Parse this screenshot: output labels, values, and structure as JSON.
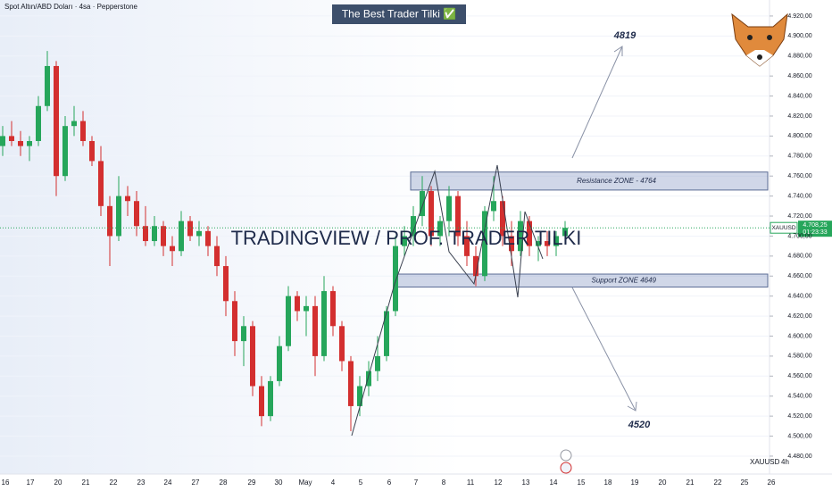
{
  "chart_data": {
    "type": "candlestick",
    "title": "Spot Altın/ABD Doları · 4sa · Pepperstone",
    "banner": "The Best Trader Tilki ✅",
    "watermark": "TRADINGVIEW / PROF.  TRADER TILKI",
    "symbol": "XAUUSD",
    "timeframe": "4h",
    "price_tag": {
      "symbol": "XAUUSD",
      "price": "4.708,25",
      "countdown": "01:23:33"
    },
    "up_color": "#26a65b",
    "down_color": "#d32f2f",
    "ylim": [
      4463,
      4936
    ],
    "yticks": [
      {
        "value": 4920,
        "label": "4.920,00"
      },
      {
        "value": 4900,
        "label": "4.900,00"
      },
      {
        "value": 4880,
        "label": "4.880,00"
      },
      {
        "value": 4860,
        "label": "4.860,00"
      },
      {
        "value": 4840,
        "label": "4.840,00"
      },
      {
        "value": 4820,
        "label": "4.820,00"
      },
      {
        "value": 4800,
        "label": "4.800,00"
      },
      {
        "value": 4780,
        "label": "4.780,00"
      },
      {
        "value": 4760,
        "label": "4.760,00"
      },
      {
        "value": 4740,
        "label": "4.740,00"
      },
      {
        "value": 4720,
        "label": "4.720,00"
      },
      {
        "value": 4700,
        "label": "4.700,00"
      },
      {
        "value": 4680,
        "label": "4.680,00"
      },
      {
        "value": 4660,
        "label": "4.660,00"
      },
      {
        "value": 4640,
        "label": "4.640,00"
      },
      {
        "value": 4620,
        "label": "4.620,00"
      },
      {
        "value": 4600,
        "label": "4.600,00"
      },
      {
        "value": 4580,
        "label": "4.580,00"
      },
      {
        "value": 4560,
        "label": "4.560,00"
      },
      {
        "value": 4540,
        "label": "4.540,00"
      },
      {
        "value": 4520,
        "label": "4.520,00"
      },
      {
        "value": 4500,
        "label": "4.500,00"
      },
      {
        "value": 4480,
        "label": "4.480,00"
      }
    ],
    "x_labels": [
      "16",
      "17",
      "20",
      "21",
      "22",
      "23",
      "24",
      "27",
      "28",
      "29",
      "30",
      "May",
      "4",
      "5",
      "6",
      "7",
      "8",
      "11",
      "12",
      "13",
      "14",
      "15",
      "18",
      "19",
      "20",
      "21",
      "22",
      "25",
      "26"
    ],
    "open": [
      4790,
      4800,
      4795,
      4790,
      4795,
      4830,
      4870,
      4760,
      4810,
      4815,
      4795,
      4775,
      4730,
      4700,
      4740,
      4735,
      4710,
      4695,
      4710,
      4690,
      4685,
      4715,
      4700,
      4705,
      4690,
      4670,
      4635,
      4595,
      4610,
      4550,
      4520,
      4555,
      4590,
      4640,
      4625,
      4630,
      4580,
      4645,
      4610,
      4575,
      4530,
      4550,
      4565,
      4580,
      4625,
      4690,
      4700,
      4720,
      4745,
      4700,
      4715,
      4740,
      4700,
      4680,
      4660,
      4725,
      4735,
      4700,
      4685,
      4715,
      4690,
      4695,
      4690,
      4700
    ],
    "high": [
      4810,
      4815,
      4805,
      4800,
      4840,
      4885,
      4875,
      4820,
      4830,
      4825,
      4800,
      4790,
      4740,
      4760,
      4750,
      4745,
      4730,
      4720,
      4715,
      4700,
      4725,
      4720,
      4715,
      4710,
      4700,
      4680,
      4645,
      4620,
      4615,
      4560,
      4560,
      4600,
      4650,
      4645,
      4640,
      4640,
      4660,
      4650,
      4615,
      4580,
      4560,
      4575,
      4600,
      4630,
      4700,
      4710,
      4730,
      4760,
      4750,
      4720,
      4750,
      4745,
      4715,
      4690,
      4730,
      4760,
      4740,
      4715,
      4725,
      4720,
      4700,
      4705,
      4705,
      4715
    ],
    "low": [
      4780,
      4790,
      4780,
      4775,
      4790,
      4825,
      4740,
      4755,
      4800,
      4790,
      4770,
      4720,
      4670,
      4695,
      4720,
      4700,
      4690,
      4690,
      4680,
      4670,
      4680,
      4695,
      4690,
      4680,
      4660,
      4620,
      4580,
      4570,
      4540,
      4510,
      4515,
      4550,
      4585,
      4615,
      4600,
      4560,
      4575,
      4600,
      4565,
      4505,
      4520,
      4540,
      4555,
      4575,
      4620,
      4680,
      4690,
      4710,
      4690,
      4690,
      4700,
      4690,
      4670,
      4650,
      4655,
      4715,
      4690,
      4670,
      4680,
      4680,
      4675,
      4680,
      4680,
      4695
    ],
    "close": [
      4800,
      4795,
      4790,
      4795,
      4830,
      4870,
      4760,
      4810,
      4815,
      4795,
      4775,
      4730,
      4700,
      4740,
      4735,
      4710,
      4695,
      4710,
      4690,
      4685,
      4715,
      4700,
      4705,
      4690,
      4670,
      4635,
      4595,
      4610,
      4550,
      4520,
      4555,
      4590,
      4640,
      4625,
      4630,
      4580,
      4645,
      4610,
      4575,
      4530,
      4550,
      4565,
      4580,
      4625,
      4690,
      4700,
      4720,
      4745,
      4700,
      4715,
      4740,
      4700,
      4680,
      4660,
      4725,
      4735,
      4700,
      4685,
      4715,
      4690,
      4695,
      4690,
      4700,
      4708.25
    ],
    "zones": [
      {
        "label": "Resistance ZONE - 4764",
        "top": 4764,
        "bottom": 4746
      },
      {
        "label": "Support ZONE 4649",
        "top": 4662,
        "bottom": 4649
      }
    ],
    "targets": [
      "4819",
      "4520"
    ]
  }
}
